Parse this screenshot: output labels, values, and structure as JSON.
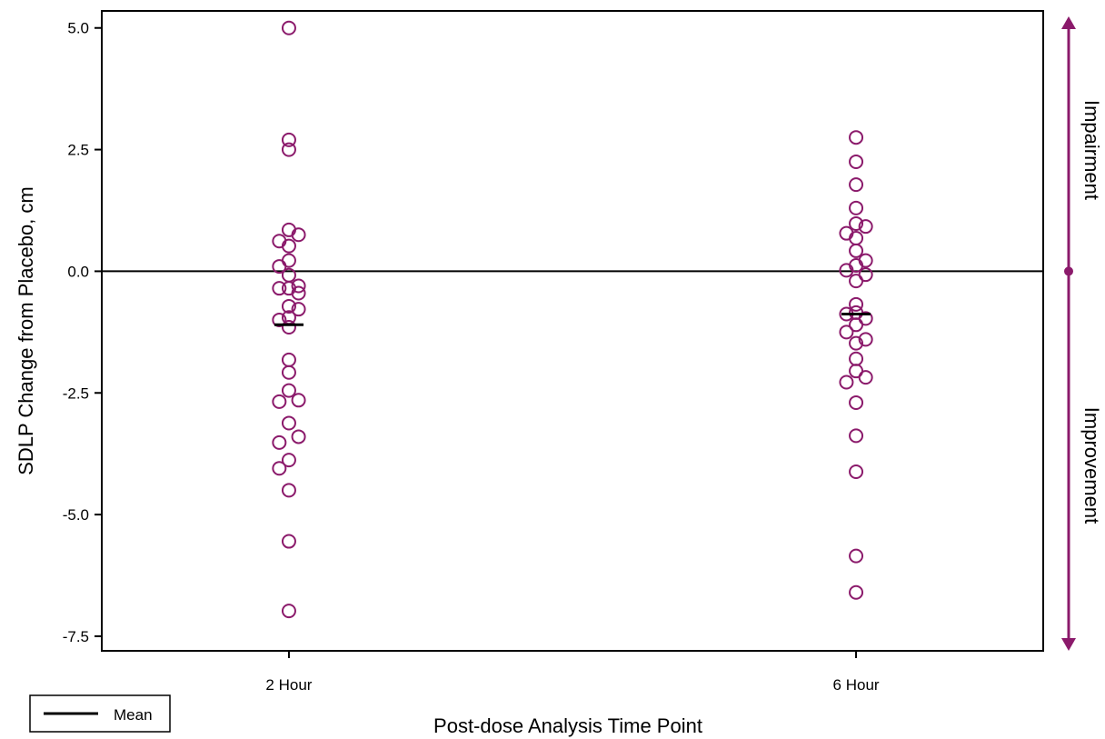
{
  "chart_data": {
    "type": "scatter",
    "title": "",
    "xlabel": "Post-dose Analysis Time Point",
    "ylabel": "SDLP Change from Placebo, cm",
    "categories": [
      "2 Hour",
      "6 Hour"
    ],
    "xlim": [
      -0.33,
      1.33
    ],
    "ylim": [
      -7.8,
      5.35
    ],
    "yticks": [
      5.0,
      2.5,
      0.0,
      -2.5,
      -5.0,
      -7.5
    ],
    "ytick_labels": [
      "5.0",
      "2.5",
      "0.0",
      "-2.5",
      "-5.0",
      "-7.5"
    ],
    "reference_line": 0.0,
    "grid": false,
    "marker_color": "#8b1a6b",
    "axis_color": "#000000",
    "arrow_color": "#8b1a6b",
    "series": [
      {
        "category": "2 Hour",
        "mean": -1.1,
        "points": [
          {
            "x": 0.0,
            "y": 5.0
          },
          {
            "x": 0.0,
            "y": 2.7
          },
          {
            "x": 0.0,
            "y": 2.5
          },
          {
            "x": 0.0,
            "y": 0.85
          },
          {
            "x": 0.017,
            "y": 0.75
          },
          {
            "x": -0.017,
            "y": 0.62
          },
          {
            "x": 0.0,
            "y": 0.52
          },
          {
            "x": 0.0,
            "y": 0.22
          },
          {
            "x": -0.017,
            "y": 0.1
          },
          {
            "x": 0.0,
            "y": -0.08
          },
          {
            "x": -0.017,
            "y": -0.35
          },
          {
            "x": 0.0,
            "y": -0.35
          },
          {
            "x": 0.017,
            "y": -0.3
          },
          {
            "x": 0.017,
            "y": -0.45
          },
          {
            "x": 0.0,
            "y": -0.72
          },
          {
            "x": 0.017,
            "y": -0.78
          },
          {
            "x": -0.017,
            "y": -1.0
          },
          {
            "x": 0.0,
            "y": -0.95
          },
          {
            "x": 0.0,
            "y": -1.15
          },
          {
            "x": 0.0,
            "y": -1.82
          },
          {
            "x": 0.0,
            "y": -2.08
          },
          {
            "x": 0.0,
            "y": -2.45
          },
          {
            "x": -0.017,
            "y": -2.68
          },
          {
            "x": 0.017,
            "y": -2.65
          },
          {
            "x": 0.0,
            "y": -3.12
          },
          {
            "x": 0.017,
            "y": -3.4
          },
          {
            "x": -0.017,
            "y": -3.52
          },
          {
            "x": 0.0,
            "y": -3.88
          },
          {
            "x": -0.017,
            "y": -4.05
          },
          {
            "x": 0.0,
            "y": -4.5
          },
          {
            "x": 0.0,
            "y": -5.55
          },
          {
            "x": 0.0,
            "y": -6.98
          }
        ]
      },
      {
        "category": "6 Hour",
        "mean": -0.88,
        "points": [
          {
            "x": 1.0,
            "y": 2.75
          },
          {
            "x": 1.0,
            "y": 2.25
          },
          {
            "x": 1.0,
            "y": 1.78
          },
          {
            "x": 1.0,
            "y": 1.3
          },
          {
            "x": 1.0,
            "y": 0.98
          },
          {
            "x": 1.017,
            "y": 0.92
          },
          {
            "x": -0.017,
            "y": 0.0,
            "skip": true
          },
          {
            "x": 0.983,
            "y": 0.78
          },
          {
            "x": 1.0,
            "y": 0.68
          },
          {
            "x": 1.0,
            "y": 0.42
          },
          {
            "x": 1.017,
            "y": 0.22
          },
          {
            "x": 1.0,
            "y": 0.12
          },
          {
            "x": 0.983,
            "y": 0.02
          },
          {
            "x": 1.017,
            "y": -0.07
          },
          {
            "x": 1.0,
            "y": -0.2
          },
          {
            "x": 1.0,
            "y": -0.68
          },
          {
            "x": 0.983,
            "y": -0.88
          },
          {
            "x": 1.0,
            "y": -0.85
          },
          {
            "x": 1.017,
            "y": -0.97
          },
          {
            "x": 1.0,
            "y": -1.1
          },
          {
            "x": 0.983,
            "y": -1.25
          },
          {
            "x": 1.017,
            "y": -1.4
          },
          {
            "x": 1.0,
            "y": -1.48
          },
          {
            "x": 1.0,
            "y": -1.8
          },
          {
            "x": 1.0,
            "y": -2.05
          },
          {
            "x": 1.017,
            "y": -2.18
          },
          {
            "x": 0.983,
            "y": -2.28
          },
          {
            "x": 1.0,
            "y": -2.7
          },
          {
            "x": 1.0,
            "y": -3.38
          },
          {
            "x": 1.0,
            "y": -4.12
          },
          {
            "x": 1.0,
            "y": -5.85
          },
          {
            "x": 1.0,
            "y": -6.6
          }
        ]
      }
    ],
    "legend": {
      "placement": "bottom-left",
      "entries": [
        "Mean"
      ]
    },
    "side_annotations": {
      "upper": "Impairment",
      "lower": "Improvement"
    }
  }
}
